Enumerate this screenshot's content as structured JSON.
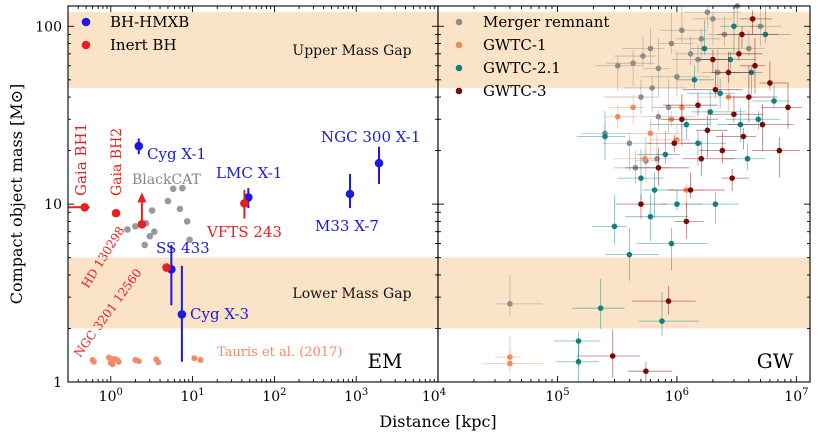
{
  "colors": {
    "bh_hmxb": "#1a1ae6",
    "inert_bh": "#e62020",
    "blackcat": "#999999",
    "tauris": "#f08a68",
    "gap_band": "#fbe3c8",
    "merger": "#8c8c8c",
    "gwtc1": "#f08a5d",
    "gwtc21": "#128080",
    "gwtc3": "#7a0a0a"
  },
  "chart_data": [
    {
      "type": "scatter",
      "panel_label": "EM",
      "xscale": "log",
      "yscale": "log",
      "xlim": [
        0.3,
        10000
      ],
      "ylim": [
        1,
        130
      ],
      "ylabel": "Compact object mass [M⊙]",
      "xtick_labels": [
        "10^0",
        "10^1",
        "10^2",
        "10^3",
        "10^4"
      ],
      "ytick_labels": [
        "1",
        "10",
        "100"
      ],
      "bands": [
        {
          "label": "Upper Mass Gap",
          "y0": 45,
          "y1": 120
        },
        {
          "label": "Lower Mass Gap",
          "y0": 2.0,
          "y1": 5.0
        }
      ],
      "legend": [
        "BH-HMXB",
        "Inert BH"
      ],
      "series": [
        {
          "name": "BH-HMXB",
          "points": [
            {
              "label": "Cyg X-1",
              "x": 2.2,
              "y": 21.2,
              "ylo": 19.1,
              "yhi": 23.4
            },
            {
              "label": "LMC X-1",
              "x": 48,
              "y": 10.9,
              "ylo": 9.5,
              "yhi": 12.3
            },
            {
              "label": "NGC 300 X-1",
              "x": 1900,
              "y": 17,
              "ylo": 13,
              "yhi": 21
            },
            {
              "label": "M33 X-7",
              "x": 840,
              "y": 11.4,
              "ylo": 9.5,
              "yhi": 14.8
            },
            {
              "label": "SS 433",
              "x": 5.5,
              "y": 4.3,
              "ylo": 2.7,
              "yhi": 5.9
            },
            {
              "label": "Cyg X-3",
              "x": 7.4,
              "y": 2.4,
              "ylo": 1.3,
              "yhi": 4.5
            }
          ]
        },
        {
          "name": "Inert BH",
          "points": [
            {
              "label": "Gaia BH1",
              "x": 0.48,
              "y": 9.6,
              "xlo": 0.3,
              "xhi": 0.55
            },
            {
              "label": "Gaia BH2",
              "x": 1.16,
              "y": 8.9
            },
            {
              "label": "HD 130298",
              "x": 2.4,
              "y": 7.7,
              "lower_limit": true
            },
            {
              "label": "VFTS 243",
              "x": 43,
              "y": 10.1,
              "ylo": 8.3,
              "yhi": 12.0
            },
            {
              "label": "NGC 3201 12560",
              "x": 4.8,
              "y": 4.4,
              "xlo": 4.5,
              "xhi": 5.1
            }
          ]
        },
        {
          "name": "BlackCAT",
          "label": "BlackCAT",
          "points": [
            {
              "x": 2.0,
              "y": 7.5
            },
            {
              "x": 2.7,
              "y": 7.8
            },
            {
              "x": 3.2,
              "y": 9.2
            },
            {
              "x": 5.8,
              "y": 12.2
            },
            {
              "x": 7.5,
              "y": 12.3
            },
            {
              "x": 5.0,
              "y": 10.4
            },
            {
              "x": 7.0,
              "y": 9.4
            },
            {
              "x": 3.0,
              "y": 6.6
            },
            {
              "x": 2.6,
              "y": 5.9
            },
            {
              "x": 8.6,
              "y": 8.0
            },
            {
              "x": 1.6,
              "y": 7.2
            },
            {
              "x": 9.2,
              "y": 6.3
            },
            {
              "x": 3.4,
              "y": 7.0
            }
          ]
        },
        {
          "name": "Tauris et al. (2017)",
          "label": "Tauris et al. (2017)",
          "points": [
            {
              "x": 0.6,
              "y": 1.33
            },
            {
              "x": 0.62,
              "y": 1.3
            },
            {
              "x": 0.95,
              "y": 1.37
            },
            {
              "x": 1.1,
              "y": 1.35
            },
            {
              "x": 1.2,
              "y": 1.33
            },
            {
              "x": 1.25,
              "y": 1.3
            },
            {
              "x": 1.0,
              "y": 1.28
            },
            {
              "x": 1.05,
              "y": 1.26
            },
            {
              "x": 2.0,
              "y": 1.33
            },
            {
              "x": 2.2,
              "y": 1.31
            },
            {
              "x": 3.6,
              "y": 1.34
            },
            {
              "x": 3.8,
              "y": 1.29
            },
            {
              "x": 10.5,
              "y": 1.36
            },
            {
              "x": 12.5,
              "y": 1.33
            }
          ]
        }
      ]
    },
    {
      "type": "scatter",
      "panel_label": "GW",
      "xscale": "log",
      "yscale": "log",
      "xlim": [
        10000,
        13000000
      ],
      "ylim": [
        1,
        130
      ],
      "xlabel": "Distance [kpc]",
      "xtick_labels": [
        "10^5",
        "10^6",
        "10^7"
      ],
      "legend": [
        "Merger remnant",
        "GWTC-1",
        "GWTC-2.1",
        "GWTC-3"
      ],
      "series": [
        {
          "name": "Merger remnant",
          "points": [
            {
              "x": 250000,
              "y": 25
            },
            {
              "x": 320000,
              "y": 60
            },
            {
              "x": 430000,
              "y": 62
            },
            {
              "x": 520000,
              "y": 68
            },
            {
              "x": 600000,
              "y": 75
            },
            {
              "x": 700000,
              "y": 58
            },
            {
              "x": 900000,
              "y": 80
            },
            {
              "x": 1100000,
              "y": 95
            },
            {
              "x": 1300000,
              "y": 70
            },
            {
              "x": 1600000,
              "y": 85
            },
            {
              "x": 2000000,
              "y": 110
            },
            {
              "x": 2500000,
              "y": 90
            },
            {
              "x": 3200000,
              "y": 130
            },
            {
              "x": 4000000,
              "y": 75
            },
            {
              "x": 5000000,
              "y": 100
            },
            {
              "x": 500000,
              "y": 40
            },
            {
              "x": 450000,
              "y": 16
            },
            {
              "x": 680000,
              "y": 18
            },
            {
              "x": 850000,
              "y": 35
            },
            {
              "x": 1000000,
              "y": 52
            },
            {
              "x": 1500000,
              "y": 65
            },
            {
              "x": 2200000,
              "y": 55
            },
            {
              "x": 700000,
              "y": 31
            },
            {
              "x": 400000,
              "y": 22
            },
            {
              "x": 1800000,
              "y": 120
            },
            {
              "x": 40000,
              "y": 2.75
            },
            {
              "x": 550000,
              "y": 17.5
            },
            {
              "x": 620000,
              "y": 45
            }
          ]
        },
        {
          "name": "GWTC-1",
          "points": [
            {
              "x": 40000,
              "y": 1.38
            },
            {
              "x": 40000,
              "y": 1.27
            },
            {
              "x": 430000,
              "y": 35
            },
            {
              "x": 320000,
              "y": 31
            },
            {
              "x": 540000,
              "y": 18
            },
            {
              "x": 1000000,
              "y": 23
            },
            {
              "x": 1100000,
              "y": 35
            },
            {
              "x": 600000,
              "y": 25
            },
            {
              "x": 2700000,
              "y": 40
            },
            {
              "x": 900000,
              "y": 30
            },
            {
              "x": 1200000,
              "y": 12
            }
          ]
        },
        {
          "name": "GWTC-2.1",
          "points": [
            {
              "x": 150000,
              "y": 1.3
            },
            {
              "x": 150000,
              "y": 1.7
            },
            {
              "x": 230000,
              "y": 2.6
            },
            {
              "x": 750000,
              "y": 2.2
            },
            {
              "x": 400000,
              "y": 5.2
            },
            {
              "x": 600000,
              "y": 8.5
            },
            {
              "x": 300000,
              "y": 7.5
            },
            {
              "x": 250000,
              "y": 24
            },
            {
              "x": 500000,
              "y": 14
            },
            {
              "x": 650000,
              "y": 12
            },
            {
              "x": 800000,
              "y": 19
            },
            {
              "x": 1000000,
              "y": 10
            },
            {
              "x": 1200000,
              "y": 28
            },
            {
              "x": 1500000,
              "y": 22
            },
            {
              "x": 1900000,
              "y": 33
            },
            {
              "x": 2300000,
              "y": 42
            },
            {
              "x": 2800000,
              "y": 65
            },
            {
              "x": 3400000,
              "y": 28
            },
            {
              "x": 4200000,
              "y": 55
            },
            {
              "x": 5500000,
              "y": 90
            },
            {
              "x": 6500000,
              "y": 38
            },
            {
              "x": 1700000,
              "y": 75
            },
            {
              "x": 3900000,
              "y": 18
            },
            {
              "x": 2100000,
              "y": 10
            },
            {
              "x": 900000,
              "y": 6
            },
            {
              "x": 4800000,
              "y": 30
            },
            {
              "x": 3000000,
              "y": 100
            },
            {
              "x": 1400000,
              "y": 50
            }
          ]
        },
        {
          "name": "GWTC-3",
          "points": [
            {
              "x": 290000,
              "y": 1.4
            },
            {
              "x": 550000,
              "y": 1.15
            },
            {
              "x": 850000,
              "y": 2.85
            },
            {
              "x": 500000,
              "y": 10
            },
            {
              "x": 700000,
              "y": 16
            },
            {
              "x": 950000,
              "y": 22
            },
            {
              "x": 1100000,
              "y": 30
            },
            {
              "x": 1300000,
              "y": 12
            },
            {
              "x": 1500000,
              "y": 36
            },
            {
              "x": 1800000,
              "y": 26
            },
            {
              "x": 2100000,
              "y": 44
            },
            {
              "x": 2400000,
              "y": 20
            },
            {
              "x": 2700000,
              "y": 55
            },
            {
              "x": 3000000,
              "y": 32
            },
            {
              "x": 3300000,
              "y": 70
            },
            {
              "x": 3600000,
              "y": 24
            },
            {
              "x": 4000000,
              "y": 40
            },
            {
              "x": 4500000,
              "y": 60
            },
            {
              "x": 5200000,
              "y": 28
            },
            {
              "x": 6000000,
              "y": 48
            },
            {
              "x": 7200000,
              "y": 20
            },
            {
              "x": 8500000,
              "y": 35
            },
            {
              "x": 2900000,
              "y": 14
            },
            {
              "x": 1200000,
              "y": 8
            },
            {
              "x": 3500000,
              "y": 90
            },
            {
              "x": 2000000,
              "y": 65
            },
            {
              "x": 4300000,
              "y": 110
            },
            {
              "x": 1600000,
              "y": 18
            }
          ]
        }
      ]
    }
  ]
}
